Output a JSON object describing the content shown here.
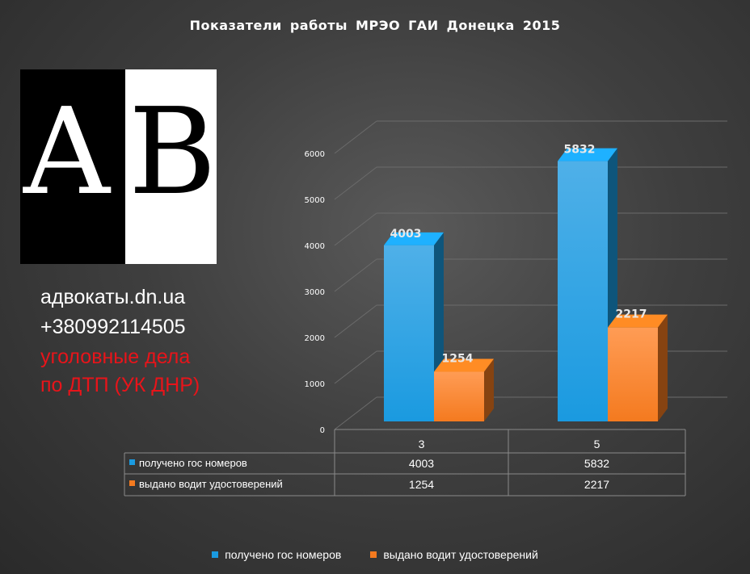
{
  "colors": {
    "series1": "#1a9ae0",
    "series2": "#f47a1f"
  },
  "ad": {
    "line1": "адвокаты.dn.ua",
    "line2": "+380992114505",
    "line3": "уголовные дела",
    "line4": "по ДТП (УК ДНР)"
  },
  "logo": {
    "letter_a": "A",
    "letter_b": "B"
  },
  "chart_data": {
    "type": "bar",
    "title": "Показатели  работы  МРЭО  ГАИ  Донецка  2015",
    "categories": [
      "3",
      "5"
    ],
    "series": [
      {
        "name": "получено гос номеров",
        "values": [
          4003,
          5832
        ]
      },
      {
        "name": "выдано водит удостоверений",
        "values": [
          1254,
          2217
        ]
      }
    ],
    "ylim": [
      0,
      6000
    ],
    "yticks": [
      "0",
      "1000",
      "2000",
      "3000",
      "4000",
      "5000",
      "6000"
    ],
    "grid": true,
    "legend": "bottom",
    "data_table": true
  }
}
